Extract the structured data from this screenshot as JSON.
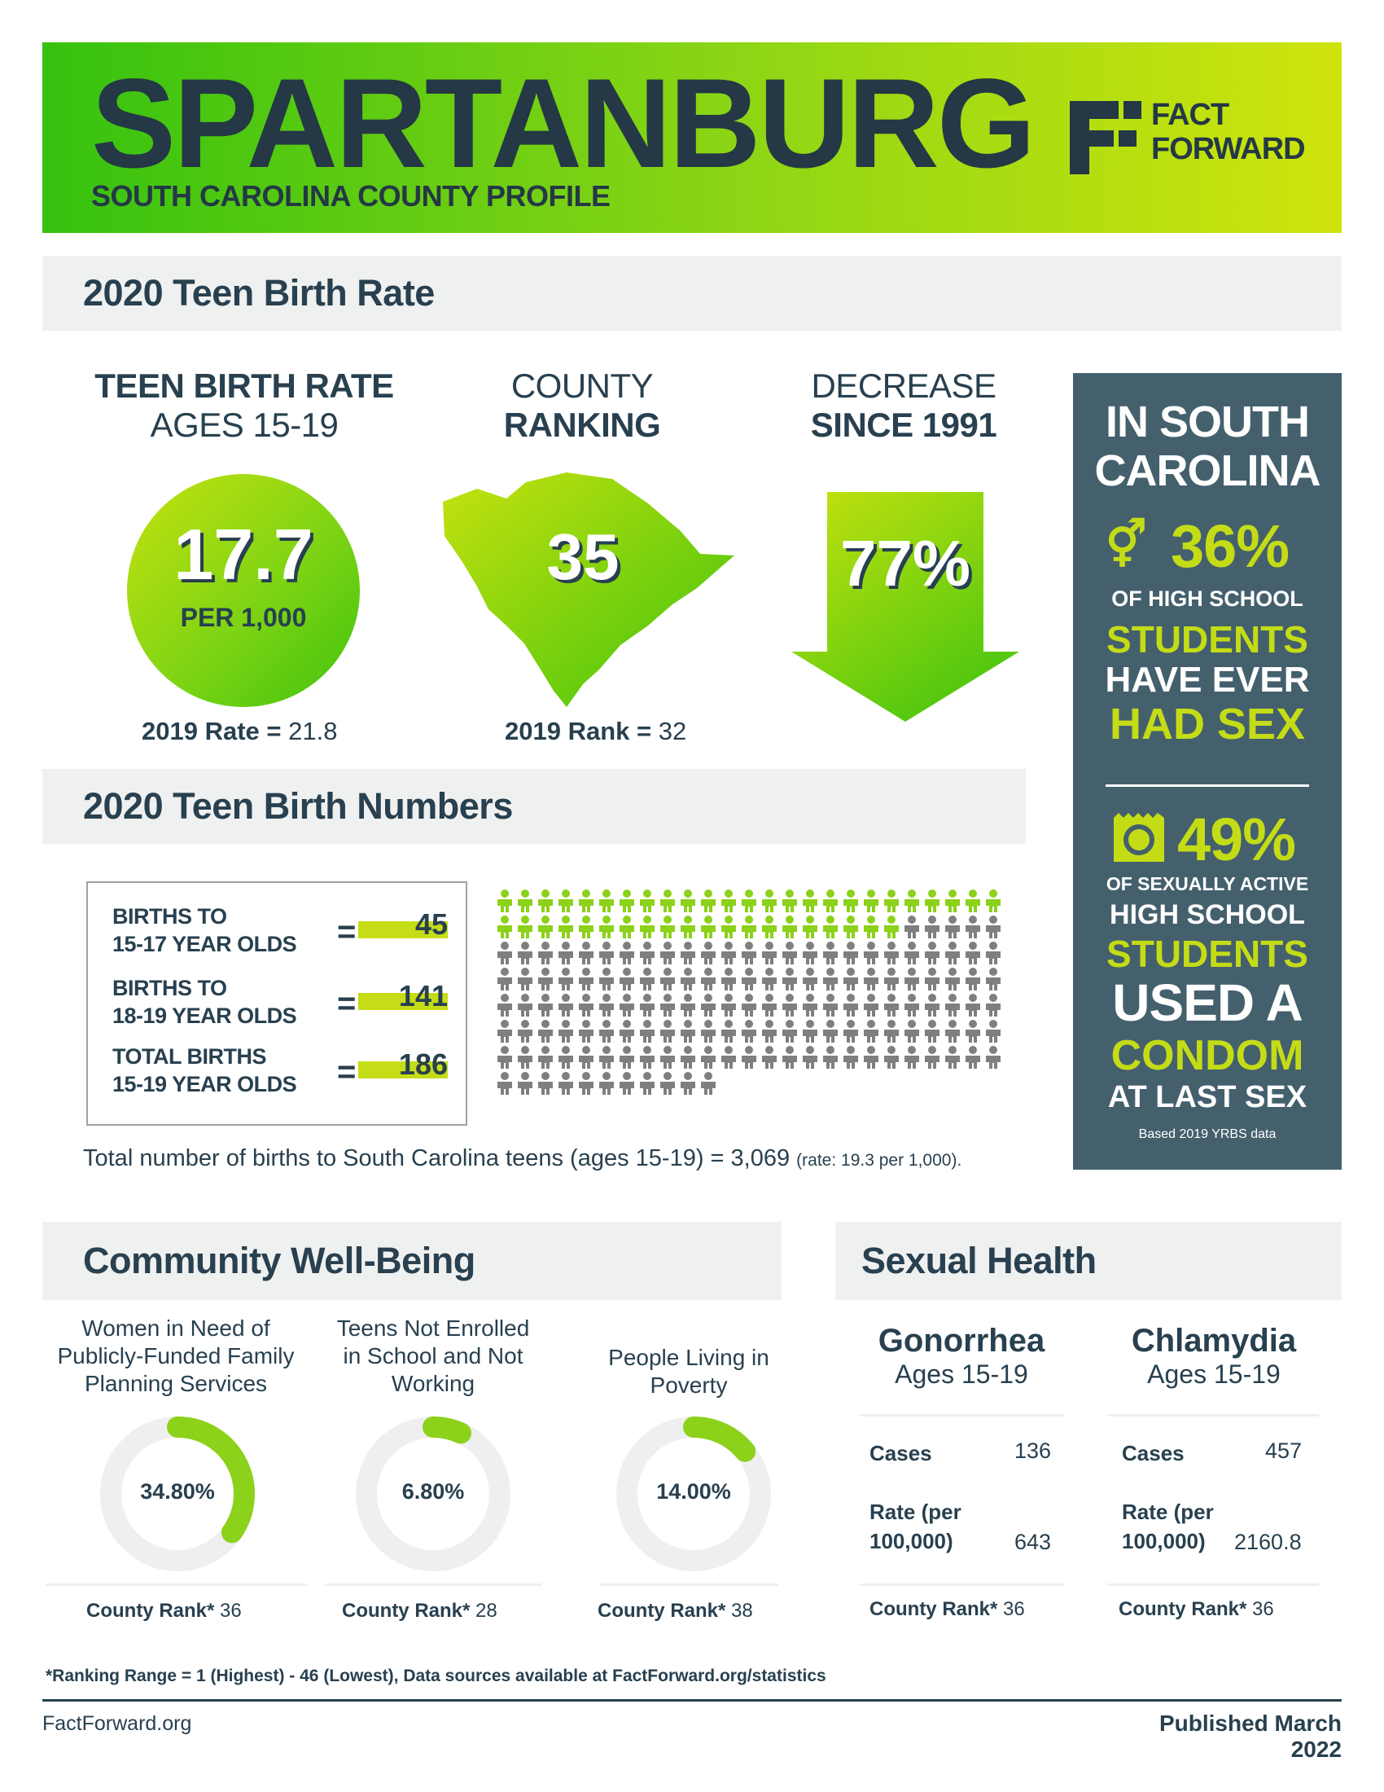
{
  "header": {
    "title": "SPARTANBURG",
    "subtitle": "SOUTH CAROLINA COUNTY PROFILE",
    "logo_text_1": "FACT",
    "logo_text_2": "FORWARD"
  },
  "teen_birth_rate": {
    "section_title": "2020 Teen Birth Rate",
    "rate": {
      "heading_1": "TEEN BIRTH RATE",
      "heading_2": "AGES 15-19",
      "value": "17.7",
      "unit": "PER 1,000",
      "prior_label": "2019 Rate =",
      "prior_value": "21.8"
    },
    "ranking": {
      "heading_1": "COUNTY",
      "heading_2": "RANKING",
      "value": "35",
      "prior_label": "2019 Rank =",
      "prior_value": "32"
    },
    "decrease": {
      "heading_1": "DECREASE",
      "heading_2": "SINCE 1991",
      "value": "77%"
    }
  },
  "side_panel": {
    "heading_1": "IN SOUTH",
    "heading_2": "CAROLINA",
    "stat1_value": "36%",
    "stat1_line1": "OF HIGH SCHOOL",
    "stat1_line2": "STUDENTS",
    "stat1_line3": "HAVE EVER",
    "stat1_line4": "HAD SEX",
    "stat2_value": "49%",
    "stat2_line1": "OF SEXUALLY ACTIVE",
    "stat2_line2": "HIGH SCHOOL",
    "stat2_line3": "STUDENTS",
    "stat2_line4": "USED A",
    "stat2_line5": "CONDOM",
    "stat2_line6": "AT LAST SEX",
    "source": "Based 2019 YRBS data",
    "icon1": "gender-symbols-icon",
    "icon2": "condom-icon"
  },
  "teen_birth_numbers": {
    "section_title": "2020 Teen Birth Numbers",
    "rows": [
      {
        "label_1": "BIRTHS TO",
        "label_2": "15-17 YEAR OLDS",
        "eq": "=",
        "value": "45"
      },
      {
        "label_1": "BIRTHS TO",
        "label_2": "18-19 YEAR OLDS",
        "eq": "=",
        "value": "141"
      },
      {
        "label_1": "TOTAL BIRTHS",
        "label_2": "15-19 YEAR OLDS",
        "eq": "=",
        "value": "186"
      }
    ],
    "pictogram": {
      "green_count": 45,
      "gray_count": 141,
      "green_color": "#8cd11a",
      "gray_color": "#7f7f7f"
    },
    "total_note_main": "Total number of births to South Carolina teens (ages 15-19) = 3,069",
    "total_note_small": "(rate: 19.3 per 1,000)."
  },
  "community": {
    "section_title": "Community Well-Being",
    "items": [
      {
        "title_1": "Women in Need of",
        "title_2": "Publicly-Funded Family",
        "title_3": "Planning Services",
        "value": "34.80%",
        "fraction": 0.348,
        "rank_label": "County Rank*",
        "rank": "36"
      },
      {
        "title_1": "Teens Not Enrolled",
        "title_2": "in School and Not",
        "title_3": "Working",
        "value": "6.80%",
        "fraction": 0.068,
        "rank_label": "County Rank*",
        "rank": "28"
      },
      {
        "title_1": "People Living in",
        "title_2": "Poverty",
        "title_3": "",
        "value": "14.00%",
        "fraction": 0.14,
        "rank_label": "County Rank*",
        "rank": "38"
      }
    ]
  },
  "sexual_health": {
    "section_title": "Sexual Health",
    "items": [
      {
        "title": "Gonorrhea",
        "subtitle": "Ages 15-19",
        "cases_label": "Cases",
        "cases": "136",
        "rate_label_1": "Rate (per",
        "rate_label_2": "100,000)",
        "rate": "643",
        "rank_label": "County Rank*",
        "rank": "36"
      },
      {
        "title": "Chlamydia",
        "subtitle": "Ages 15-19",
        "cases_label": "Cases",
        "cases": "457",
        "rate_label_1": "Rate (per",
        "rate_label_2": "100,000)",
        "rate": "2160.8",
        "rank_label": "County Rank*",
        "rank": "36"
      }
    ]
  },
  "footer": {
    "note": "*Ranking Range = 1 (Highest) - 46 (Lowest), Data sources available at FactForward.org/statistics",
    "site": "FactForward.org",
    "published": "Published March 2022"
  },
  "colors": {
    "navy": "#28404f",
    "green": "#8cd11a",
    "lime": "#c4dc16",
    "panel": "#44606d"
  }
}
